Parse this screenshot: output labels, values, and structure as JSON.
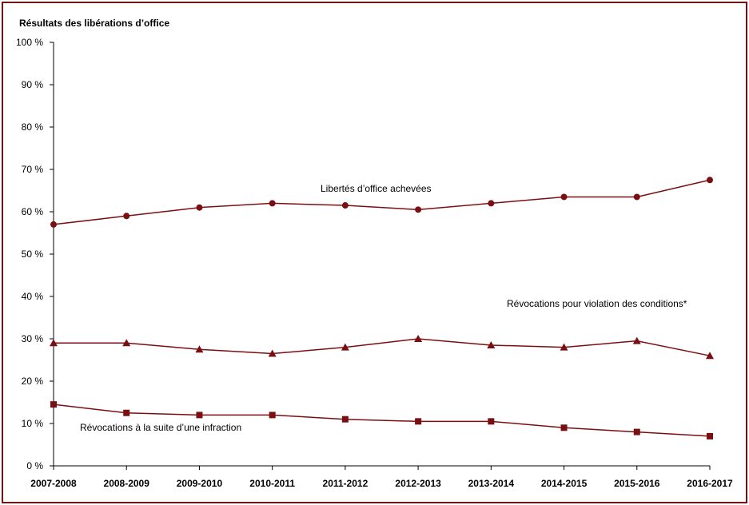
{
  "chart_data": {
    "type": "line",
    "title": "Résultats des libérations d’office",
    "categories": [
      "2007-2008",
      "2008-2009",
      "2009-2010",
      "2010-2011",
      "2011-2012",
      "2012-2013",
      "2013-2014",
      "2014-2015",
      "2015-2016",
      "2016-2017"
    ],
    "y_ticks": [
      "0 %",
      "10 %",
      "20 %",
      "30 %",
      "40 %",
      "50 %",
      "60 %",
      "70 %",
      "80 %",
      "90 %",
      "100 %"
    ],
    "ylim": [
      0,
      100
    ],
    "grid": false,
    "legend": "none",
    "series": [
      {
        "name": "Libertés d’office achevées",
        "marker": "circle",
        "values": [
          57,
          59,
          61,
          62,
          61.5,
          60.5,
          62,
          63.5,
          63.5,
          67.5
        ]
      },
      {
        "name": "Révocations pour violation des conditions*",
        "marker": "triangle",
        "values": [
          29,
          29,
          27.5,
          26.5,
          28,
          30,
          28.5,
          28,
          29.5,
          26
        ]
      },
      {
        "name": "Révocations à la suite d’une infraction",
        "marker": "square",
        "values": [
          14.5,
          12.5,
          12,
          12,
          11,
          10.5,
          10.5,
          9,
          8,
          7
        ]
      }
    ],
    "color": "#7a0f12"
  }
}
